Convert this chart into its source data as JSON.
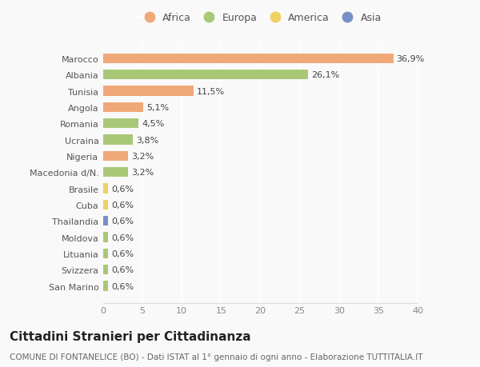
{
  "countries": [
    "Marocco",
    "Albania",
    "Tunisia",
    "Angola",
    "Romania",
    "Ucraina",
    "Nigeria",
    "Macedonia d/N.",
    "Brasile",
    "Cuba",
    "Thailandia",
    "Moldova",
    "Lituania",
    "Svizzera",
    "San Marino"
  ],
  "values": [
    36.9,
    26.1,
    11.5,
    5.1,
    4.5,
    3.8,
    3.2,
    3.2,
    0.6,
    0.6,
    0.6,
    0.6,
    0.6,
    0.6,
    0.6
  ],
  "labels": [
    "36,9%",
    "26,1%",
    "11,5%",
    "5,1%",
    "4,5%",
    "3,8%",
    "3,2%",
    "3,2%",
    "0,6%",
    "0,6%",
    "0,6%",
    "0,6%",
    "0,6%",
    "0,6%",
    "0,6%"
  ],
  "continents": [
    "Africa",
    "Europa",
    "Africa",
    "Africa",
    "Europa",
    "Europa",
    "Africa",
    "Europa",
    "America",
    "America",
    "Asia",
    "Europa",
    "Europa",
    "Europa",
    "Europa"
  ],
  "continent_colors": {
    "Africa": "#F0A878",
    "Europa": "#A8C878",
    "America": "#F0D060",
    "Asia": "#7890C8"
  },
  "legend_order": [
    "Africa",
    "Europa",
    "America",
    "Asia"
  ],
  "title": "Cittadini Stranieri per Cittadinanza",
  "subtitle": "COMUNE DI FONTANELICE (BO) - Dati ISTAT al 1° gennaio di ogni anno - Elaborazione TUTTITALIA.IT",
  "xlim": [
    0,
    40
  ],
  "xticks": [
    0,
    5,
    10,
    15,
    20,
    25,
    30,
    35,
    40
  ],
  "background_color": "#f9f9f9",
  "grid_color": "#ffffff",
  "bar_height": 0.6,
  "title_fontsize": 11,
  "subtitle_fontsize": 7.5,
  "label_fontsize": 8,
  "tick_fontsize": 8,
  "legend_fontsize": 9
}
